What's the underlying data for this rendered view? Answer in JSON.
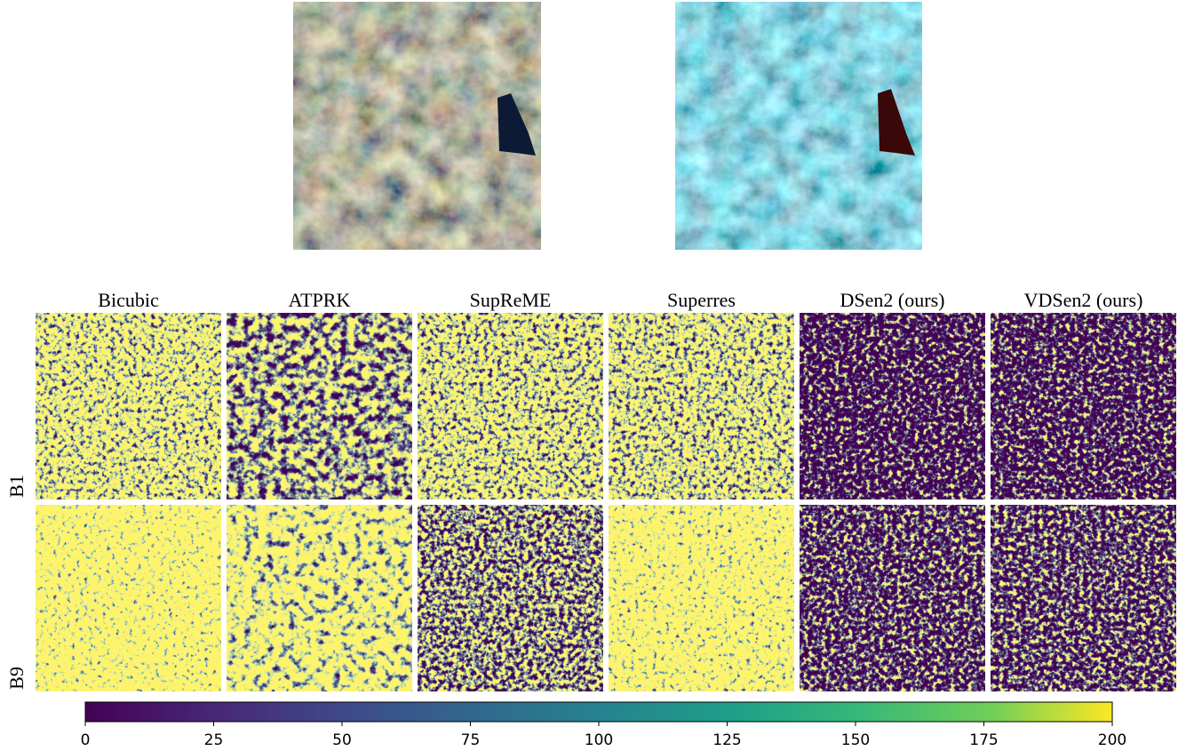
{
  "figure": {
    "column_titles": [
      "Bicubic",
      "ATPRK",
      "SupReME",
      "Superres",
      "DSen2 (ours)",
      "VDSen2 (ours)"
    ],
    "row_labels": [
      "B1",
      "B9"
    ],
    "colorbar": {
      "range": [
        0,
        200
      ],
      "ticks": [
        0,
        25,
        50,
        75,
        100,
        125,
        150,
        175,
        200
      ]
    }
  }
}
